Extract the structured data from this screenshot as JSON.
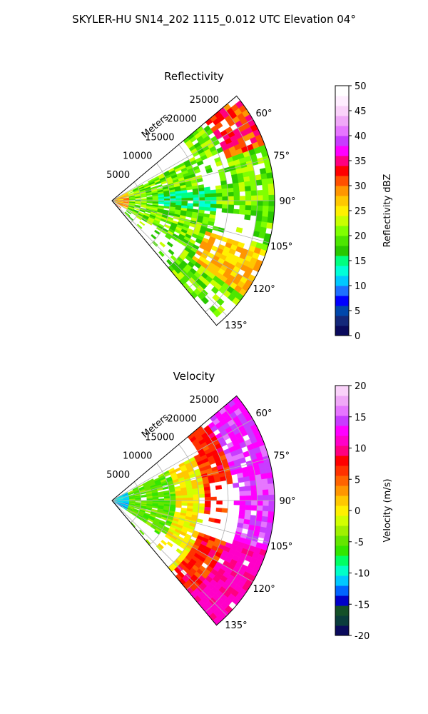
{
  "suptitle": "SKYLER-HU  SN14_202  1115_0.012 UTC Elevation 04°",
  "chart_data": [
    {
      "type": "heatmap",
      "projection": "polar-sector",
      "title": "Reflectivity",
      "range_label": "Meters",
      "range_ticks": [
        "5000",
        "10000",
        "15000",
        "20000",
        "25000"
      ],
      "range_tick_values": [
        5000,
        10000,
        15000,
        20000,
        25000
      ],
      "range_max": 28000,
      "azimuth_range": [
        50,
        140
      ],
      "azimuth_ticks": [
        "60°",
        "75°",
        "90°",
        "105°",
        "120°",
        "135°"
      ],
      "azimuth_tick_values": [
        60,
        75,
        90,
        105,
        120,
        135
      ],
      "grid": true,
      "colorbar": {
        "label": "Reflectivity dBZ",
        "range": [
          0,
          50
        ],
        "ticks": [
          "0",
          "5",
          "10",
          "15",
          "20",
          "25",
          "30",
          "35",
          "40",
          "45",
          "50"
        ],
        "colors": [
          "#0a0a5c",
          "#14287a",
          "#0047ab",
          "#0000ff",
          "#1e6fff",
          "#00c8ff",
          "#00ffd8",
          "#00ff80",
          "#28c800",
          "#4de600",
          "#80ff00",
          "#c8ff00",
          "#fff000",
          "#ffc800",
          "#ff9600",
          "#ff5000",
          "#ff0000",
          "#ff0080",
          "#ff00ff",
          "#c83cff",
          "#e676ff",
          "#f0a8f8",
          "#fad2fa",
          "#ffeeff",
          "#ffffff"
        ]
      },
      "field_summary": [
        {
          "region": "near radar",
          "value": 30
        },
        {
          "region": "main band",
          "value": 20
        },
        {
          "region": "azimuth 85-95 mid range",
          "value": 15
        },
        {
          "region": "far edge 55-70°",
          "value": 33
        },
        {
          "region": "far edge 110-125°",
          "value": 28
        }
      ]
    },
    {
      "type": "heatmap",
      "projection": "polar-sector",
      "title": "Velocity",
      "range_label": "Meters",
      "range_ticks": [
        "5000",
        "10000",
        "15000",
        "20000",
        "25000"
      ],
      "range_tick_values": [
        5000,
        10000,
        15000,
        20000,
        25000
      ],
      "range_max": 28000,
      "azimuth_range": [
        50,
        140
      ],
      "azimuth_ticks": [
        "60°",
        "75°",
        "90°",
        "105°",
        "120°",
        "135°"
      ],
      "azimuth_tick_values": [
        60,
        75,
        90,
        105,
        120,
        135
      ],
      "grid": true,
      "colorbar": {
        "label": "Velocity (m/s)",
        "range": [
          -20,
          20
        ],
        "ticks": [
          "-20",
          "-15",
          "-10",
          "-5",
          "0",
          "5",
          "10",
          "15",
          "20"
        ],
        "colors": [
          "#0a0a5c",
          "#0a3c3c",
          "#145028",
          "#0000c8",
          "#0064ff",
          "#00c8ff",
          "#00ffc8",
          "#00ff64",
          "#32e600",
          "#64e600",
          "#a0f000",
          "#d2ff00",
          "#fff000",
          "#ffc800",
          "#ff9600",
          "#ff6400",
          "#ff3200",
          "#ff0000",
          "#ff0080",
          "#ff00c8",
          "#ff00ff",
          "#c83cff",
          "#e676ff",
          "#f0a8f8",
          "#fad2fa"
        ]
      },
      "field_summary": [
        {
          "region": "near radar",
          "value": -11
        },
        {
          "region": "inner band",
          "value": -5
        },
        {
          "region": "mid range",
          "value": 0
        },
        {
          "region": "outer mid range",
          "value": 8
        },
        {
          "region": "far edge",
          "value": 15
        }
      ]
    }
  ]
}
